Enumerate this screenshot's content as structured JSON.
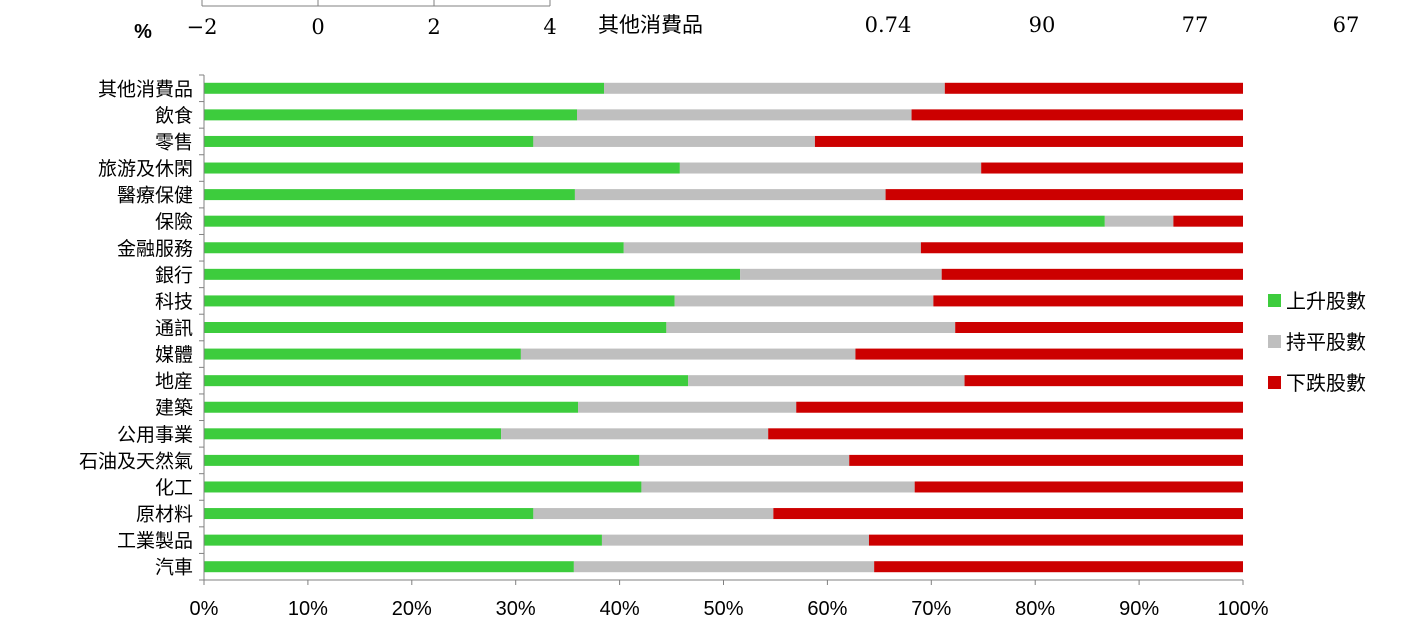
{
  "top_strip": {
    "unit_label": "%",
    "axis_ticks": [
      "−2",
      "0",
      "2",
      "4"
    ],
    "row_label": "其他消費品",
    "values": [
      "0.74",
      "90",
      "77",
      "67"
    ]
  },
  "chart_data": {
    "type": "bar",
    "orientation": "horizontal",
    "stacked": true,
    "percent_stacked": true,
    "categories": [
      "其他消費品",
      "飲食",
      "零售",
      "旅游及休閑",
      "醫療保健",
      "保險",
      "金融服務",
      "銀行",
      "科技",
      "通訊",
      "媒體",
      "地産",
      "建築",
      "公用事業",
      "石油及天然氣",
      "化工",
      "原材料",
      "工業製品",
      "汽車"
    ],
    "series": [
      {
        "name": "上升股數",
        "color": "#3DCC3D",
        "values": [
          38.5,
          35.9,
          31.7,
          45.8,
          35.7,
          86.7,
          40.4,
          51.6,
          45.3,
          44.5,
          30.5,
          46.6,
          36.0,
          28.6,
          41.9,
          42.1,
          31.7,
          38.3,
          35.6
        ]
      },
      {
        "name": "持平股數",
        "color": "#BFBFBF",
        "values": [
          32.8,
          32.2,
          27.1,
          29.0,
          29.9,
          6.6,
          28.6,
          19.4,
          24.9,
          27.8,
          32.2,
          26.6,
          21.0,
          25.7,
          20.2,
          26.3,
          23.1,
          25.7,
          28.9
        ]
      },
      {
        "name": "下跌股數",
        "color": "#CC0000",
        "values": [
          28.7,
          31.9,
          41.2,
          25.2,
          34.4,
          6.7,
          31.0,
          29.0,
          29.8,
          27.7,
          37.3,
          26.8,
          43.0,
          45.7,
          37.9,
          31.6,
          45.2,
          36.0,
          35.5
        ]
      }
    ],
    "x_tick_labels": [
      "0%",
      "10%",
      "20%",
      "30%",
      "40%",
      "50%",
      "60%",
      "70%",
      "80%",
      "90%",
      "100%"
    ],
    "xlim": [
      0,
      100
    ],
    "legend_position": "right",
    "grid": false
  }
}
